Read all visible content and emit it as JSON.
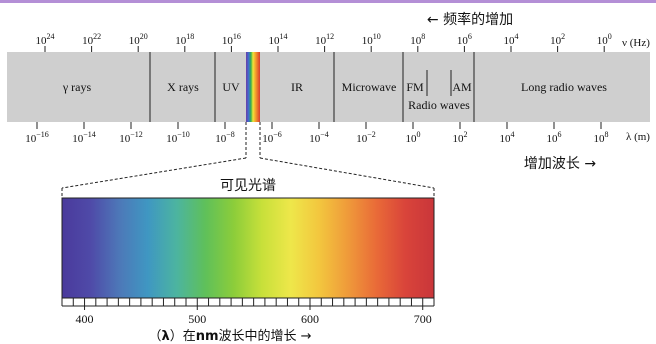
{
  "top_arrow_label": "← 频率的增加",
  "freq_axis": {
    "unit": "ν (Hz)",
    "ticks": [
      {
        "base": "10",
        "exp": "24"
      },
      {
        "base": "10",
        "exp": "22"
      },
      {
        "base": "10",
        "exp": "20"
      },
      {
        "base": "10",
        "exp": "18"
      },
      {
        "base": "10",
        "exp": "16"
      },
      {
        "base": "10",
        "exp": "14"
      },
      {
        "base": "10",
        "exp": "12"
      },
      {
        "base": "10",
        "exp": "10"
      },
      {
        "base": "10",
        "exp": "8"
      },
      {
        "base": "10",
        "exp": "6"
      },
      {
        "base": "10",
        "exp": "4"
      },
      {
        "base": "10",
        "exp": "2"
      },
      {
        "base": "10",
        "exp": "0"
      }
    ]
  },
  "wave_axis": {
    "unit": "λ (m)",
    "ticks": [
      {
        "base": "10",
        "exp": "−16"
      },
      {
        "base": "10",
        "exp": "−14"
      },
      {
        "base": "10",
        "exp": "−12"
      },
      {
        "base": "10",
        "exp": "−10"
      },
      {
        "base": "10",
        "exp": "−8"
      },
      {
        "base": "10",
        "exp": "−6"
      },
      {
        "base": "10",
        "exp": "−4"
      },
      {
        "base": "10",
        "exp": "−2"
      },
      {
        "base": "10",
        "exp": "0"
      },
      {
        "base": "10",
        "exp": "2"
      },
      {
        "base": "10",
        "exp": "4"
      },
      {
        "base": "10",
        "exp": "6"
      },
      {
        "base": "10",
        "exp": "8"
      }
    ]
  },
  "bands": {
    "gamma": "γ rays",
    "xray": "X rays",
    "uv": "UV",
    "ir": "IR",
    "microwave": "Microwave",
    "fm": "FM",
    "am": "AM",
    "radio": "Radio waves",
    "long_radio": "Long radio waves"
  },
  "bottom_right_label": "增加波长 →",
  "visible": {
    "title": "可见光谱",
    "tick_labels": [
      "400",
      "500",
      "600",
      "700"
    ],
    "range_nm": [
      380,
      710
    ]
  },
  "caption": {
    "prefix": "（",
    "lambda": "λ",
    "mid": "）在",
    "nm": "nm",
    "rest": "波长中的增长 →"
  },
  "colors": {
    "band_bg": "#cfcfcf",
    "deco_strip": "#b48fd6",
    "spectrum": [
      "#4a3a9c",
      "#4f4aa8",
      "#4d78b8",
      "#3f97c2",
      "#4cb4a0",
      "#5fc05a",
      "#8ccd3a",
      "#c8e03a",
      "#eee74a",
      "#f3c63e",
      "#ef9a3a",
      "#e96a38",
      "#d9443a",
      "#c9363a"
    ]
  }
}
